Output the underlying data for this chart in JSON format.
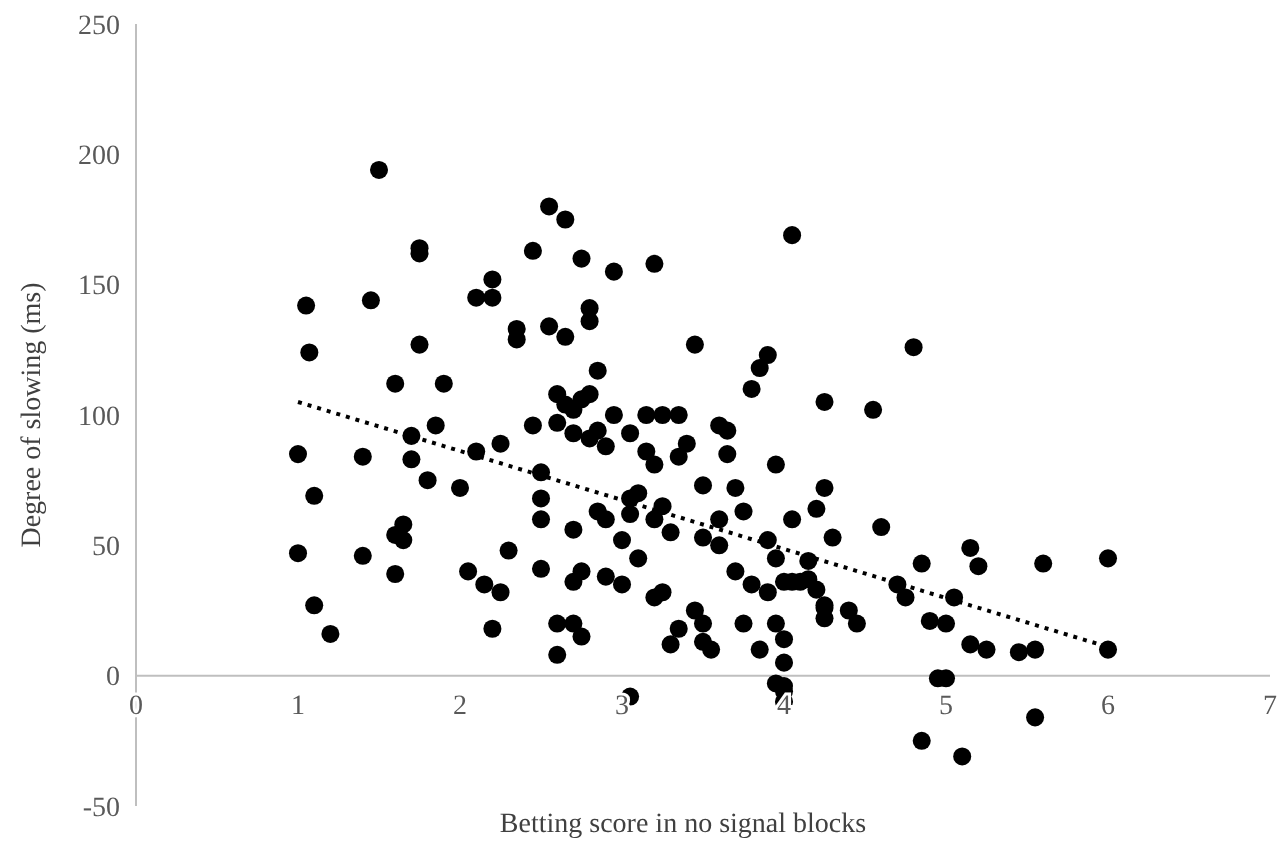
{
  "chart_data": {
    "type": "scatter",
    "xlabel": "Betting score in no signal blocks",
    "ylabel": "Degree of slowing (ms)",
    "xlim": [
      0,
      7
    ],
    "ylim": [
      -50,
      250
    ],
    "xticks": [
      0,
      1,
      2,
      3,
      4,
      5,
      6,
      7
    ],
    "yticks": [
      -50,
      0,
      50,
      100,
      150,
      200,
      250
    ],
    "grid": false,
    "series": [
      {
        "color": "#000000",
        "marker": "circle",
        "x": [
          1.0,
          1.0,
          1.05,
          1.07,
          1.1,
          1.1,
          1.2,
          1.4,
          1.4,
          1.45,
          1.5,
          1.6,
          1.6,
          1.6,
          1.65,
          1.65,
          1.7,
          1.7,
          1.75,
          1.75,
          1.75,
          1.8,
          1.85,
          1.9,
          2.0,
          2.05,
          2.1,
          2.1,
          2.15,
          2.2,
          2.2,
          2.2,
          2.25,
          2.25,
          2.3,
          2.35,
          2.35,
          2.45,
          2.45,
          2.5,
          2.5,
          2.5,
          2.5,
          2.55,
          2.55,
          2.6,
          2.6,
          2.6,
          2.6,
          2.65,
          2.65,
          2.65,
          2.7,
          2.7,
          2.7,
          2.7,
          2.7,
          2.75,
          2.75,
          2.75,
          2.75,
          2.8,
          2.8,
          2.8,
          2.8,
          2.85,
          2.85,
          2.85,
          2.9,
          2.9,
          2.9,
          2.95,
          2.95,
          3.0,
          3.0,
          3.05,
          3.05,
          3.05,
          3.05,
          3.1,
          3.1,
          3.15,
          3.15,
          3.2,
          3.2,
          3.2,
          3.2,
          3.25,
          3.25,
          3.25,
          3.3,
          3.3,
          3.35,
          3.35,
          3.35,
          3.4,
          3.45,
          3.45,
          3.5,
          3.5,
          3.5,
          3.5,
          3.55,
          3.6,
          3.6,
          3.6,
          3.65,
          3.65,
          3.7,
          3.7,
          3.75,
          3.75,
          3.8,
          3.8,
          3.85,
          3.85,
          3.9,
          3.9,
          3.9,
          3.95,
          3.95,
          3.95,
          4.0,
          4.0,
          4.0,
          4.0,
          4.0,
          3.95,
          4.0,
          4.05,
          4.05,
          4.05,
          4.1,
          4.15,
          4.15,
          4.2,
          4.2,
          4.25,
          4.25,
          4.25,
          4.25,
          4.25,
          4.3,
          4.4,
          4.45,
          4.55,
          4.6,
          4.7,
          4.75,
          4.8,
          4.85,
          4.85,
          4.9,
          4.95,
          5.0,
          5.0,
          5.05,
          5.1,
          5.15,
          5.15,
          5.2,
          5.25,
          5.45,
          5.55,
          5.55,
          5.6,
          6.0,
          6.0
        ],
        "values": [
          85,
          47,
          142,
          124,
          69,
          27,
          16,
          84,
          46,
          144,
          194,
          112,
          39,
          54,
          58,
          52,
          92,
          83,
          164,
          162,
          127,
          75,
          96,
          112,
          72,
          40,
          145,
          86,
          35,
          145,
          152,
          18,
          32,
          89,
          48,
          129,
          133,
          163,
          96,
          78,
          68,
          41,
          60,
          134,
          180,
          108,
          97,
          20,
          8,
          175,
          130,
          104,
          102,
          93,
          56,
          36,
          20,
          160,
          106,
          40,
          15,
          108,
          141,
          136,
          91,
          117,
          94,
          63,
          88,
          60,
          38,
          100,
          155,
          52,
          35,
          93,
          68,
          62,
          -8,
          70,
          45,
          100,
          86,
          81,
          60,
          30,
          158,
          100,
          65,
          32,
          55,
          12,
          84,
          18,
          100,
          89,
          127,
          25,
          20,
          73,
          53,
          13,
          10,
          50,
          96,
          60,
          85,
          94,
          40,
          72,
          20,
          63,
          110,
          35,
          118,
          10,
          123,
          52,
          32,
          45,
          81,
          20,
          14,
          5,
          -4,
          -10,
          -6,
          -3,
          36,
          60,
          36,
          169,
          36,
          37,
          44,
          33,
          64,
          22,
          26,
          27,
          105,
          72,
          53,
          25,
          20,
          102,
          57,
          35,
          30,
          126,
          -25,
          43,
          21,
          -1,
          -1,
          20,
          30,
          -31,
          49,
          12,
          42,
          10,
          9,
          10,
          -16,
          43,
          45,
          10
        ]
      },
      {
        "type": "line",
        "color": "#000000",
        "line_style": "dotted",
        "marker": "none",
        "x": [
          1,
          6
        ],
        "values": [
          105,
          11
        ]
      }
    ]
  }
}
